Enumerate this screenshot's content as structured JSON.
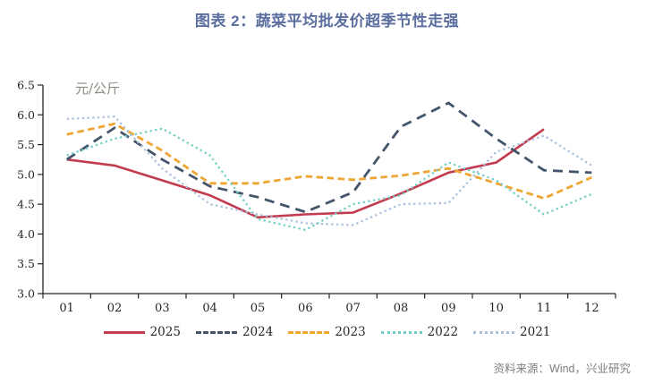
{
  "title": "图表 2：蔬菜平均批发价超季节性走强",
  "unit_label": "元/公斤",
  "source": "资料来源：Wind，兴业研究",
  "colors": {
    "title_accent": "#5b6e9f",
    "axis": "#262626",
    "source_text": "#7f7f7f"
  },
  "chart_data": {
    "type": "line",
    "title": "图表 2：蔬菜平均批发价超季节性走强",
    "ylabel": "元/公斤",
    "xlabel": "",
    "ylim": [
      3.0,
      6.5
    ],
    "ytick_step": 0.5,
    "yticks": [
      "3.0",
      "3.5",
      "4.0",
      "4.5",
      "5.0",
      "5.5",
      "6.0",
      "6.5"
    ],
    "grid": false,
    "legend_position": "bottom",
    "categories": [
      "01",
      "02",
      "03",
      "04",
      "05",
      "06",
      "07",
      "08",
      "09",
      "10",
      "11",
      "12"
    ],
    "series": [
      {
        "name": "2025",
        "color": "#c23b4e",
        "style": "solid",
        "values": [
          5.25,
          5.15,
          4.9,
          4.65,
          4.28,
          4.33,
          4.36,
          4.68,
          5.03,
          5.2,
          5.76,
          null
        ]
      },
      {
        "name": "2024",
        "color": "#44546a",
        "style": "dash-long",
        "values": [
          5.25,
          5.78,
          5.25,
          4.8,
          4.62,
          4.37,
          4.7,
          5.8,
          6.2,
          5.6,
          5.07,
          5.03
        ]
      },
      {
        "name": "2023",
        "color": "#efa532",
        "style": "dash",
        "values": [
          5.67,
          5.85,
          5.4,
          4.85,
          4.85,
          4.97,
          4.91,
          4.98,
          5.1,
          4.85,
          4.6,
          4.95
        ]
      },
      {
        "name": "2022",
        "color": "#72cec4",
        "style": "dot",
        "values": [
          5.32,
          5.6,
          5.77,
          5.32,
          4.25,
          4.07,
          4.5,
          4.65,
          5.2,
          4.9,
          4.33,
          4.67
        ]
      },
      {
        "name": "2021",
        "color": "#a9c0dc",
        "style": "dot",
        "values": [
          5.93,
          5.97,
          5.1,
          4.5,
          4.33,
          4.18,
          4.15,
          4.5,
          4.52,
          5.38,
          5.65,
          5.15
        ]
      }
    ]
  }
}
